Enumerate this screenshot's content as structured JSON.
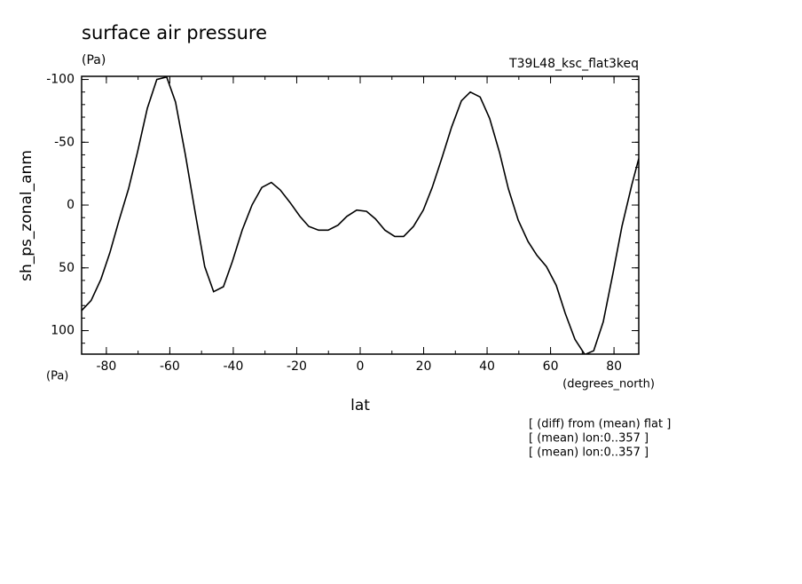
{
  "chart_data": {
    "type": "line",
    "title": "surface air pressure",
    "units": "(Pa)",
    "experiment": "T39L48_ksc_flat3keq",
    "ylabel": "sh_ps_zonal_anm",
    "yunits": "(Pa)",
    "xunits": "(degrees_north)",
    "xlabel": "lat",
    "notes": [
      "[ (diff) from (mean) flat ]",
      "[ (mean) lon:0..357 ]",
      "[ (mean) lon:0..357 ]"
    ],
    "xlim": [
      -87.8,
      87.8
    ],
    "ylim": [
      118.7,
      -102.5
    ],
    "xticks": [
      -80,
      -60,
      -40,
      -20,
      0,
      20,
      40,
      60,
      80
    ],
    "yticks": [
      -100,
      -50,
      0,
      50,
      100
    ],
    "xminorticks": [
      -80,
      -70,
      -60,
      -50,
      -40,
      -30,
      -20,
      -10,
      0,
      10,
      20,
      30,
      40,
      50,
      60,
      70,
      80
    ],
    "yminorticks": [
      -100,
      -90,
      -80,
      -70,
      -60,
      -50,
      -40,
      -30,
      -20,
      -10,
      0,
      10,
      20,
      30,
      40,
      50,
      60,
      70,
      80,
      90,
      100,
      110
    ],
    "x": [
      -87.8,
      -84.8,
      -81.7,
      -78.9,
      -76.1,
      -73,
      -70.2,
      -67.1,
      -64.1,
      -61,
      -58.2,
      -55.1,
      -52,
      -49,
      -46.2,
      -43.1,
      -40.3,
      -37.2,
      -34.1,
      -31,
      -28,
      -25.2,
      -22.1,
      -19,
      -16.2,
      -13.1,
      -10.1,
      -7,
      -4.2,
      -1.1,
      2,
      4.8,
      7.8,
      10.9,
      13.7,
      16.8,
      19.9,
      22.7,
      25.7,
      28.8,
      31.9,
      34.7,
      37.8,
      40.8,
      43.9,
      46.7,
      49.8,
      52.9,
      55.7,
      58.7,
      61.8,
      64.6,
      67.7,
      70.8,
      73.6,
      76.6,
      79.7,
      82.5,
      85.6,
      87.8
    ],
    "series": [
      {
        "color": "#000000",
        "values": [
          84,
          76,
          59,
          38,
          13,
          -13,
          -42,
          -77,
          -100,
          -102,
          -82,
          -40,
          6,
          49,
          69,
          65,
          45,
          20,
          0,
          -14,
          -18,
          -12,
          -2,
          9,
          17,
          20,
          20,
          16,
          9,
          4,
          5,
          11,
          20,
          25,
          25,
          17,
          4,
          -14,
          -37,
          -62,
          -83,
          -90,
          -86,
          -69,
          -42,
          -13,
          12,
          29,
          40,
          49,
          64,
          86,
          107,
          119,
          116,
          93,
          54,
          17,
          -16,
          -37
        ]
      }
    ]
  }
}
